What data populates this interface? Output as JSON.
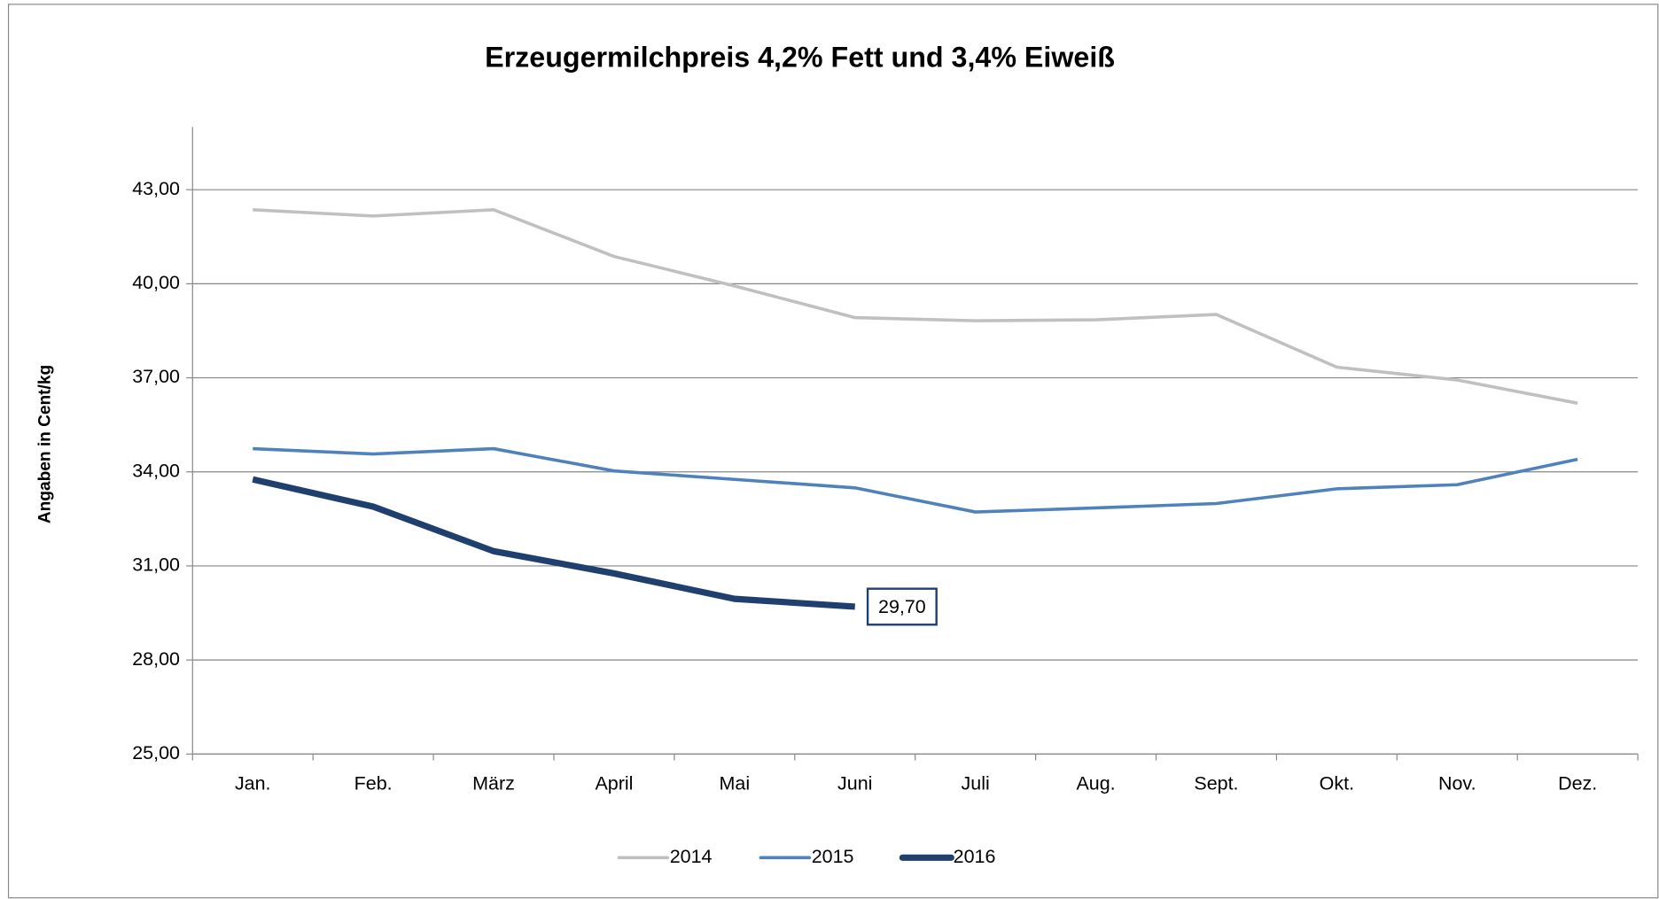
{
  "chart_data": {
    "type": "line",
    "title": "Erzeugermilchpreis 4,2% Fett und 3,4% Eiweiß",
    "y_label": "Angaben in Cent/kg",
    "categories": [
      "Jan.",
      "Feb.",
      "März",
      "April",
      "Mai",
      "Juni",
      "Juli",
      "Aug.",
      "Sept.",
      "Okt.",
      "Nov.",
      "Dez."
    ],
    "series": [
      {
        "name": "2014",
        "color": "#c0c0c0",
        "values": [
          42.36,
          42.16,
          42.36,
          40.87,
          39.93,
          38.92,
          38.82,
          38.85,
          39.02,
          37.34,
          36.93,
          36.19
        ]
      },
      {
        "name": "2015",
        "color": "#4f81bd",
        "values": [
          34.74,
          34.57,
          34.74,
          34.03,
          33.76,
          33.49,
          32.72,
          32.85,
          32.99,
          33.46,
          33.59,
          34.4
        ]
      },
      {
        "name": "2016",
        "color": "#1f3f6e",
        "values": [
          33.76,
          32.89,
          31.47,
          30.76,
          29.95,
          29.7,
          null,
          null,
          null,
          null,
          null,
          null
        ],
        "value_labels": [
          null,
          null,
          null,
          null,
          null,
          "29,70",
          null,
          null,
          null,
          null,
          null,
          null
        ]
      }
    ],
    "ylim": [
      25,
      45
    ],
    "yticks": [
      {
        "value": 25,
        "label": "25,00"
      },
      {
        "value": 28,
        "label": "28,00"
      },
      {
        "value": 31,
        "label": "31,00"
      },
      {
        "value": 34,
        "label": "34,00"
      },
      {
        "value": 37,
        "label": "37,00"
      },
      {
        "value": 40,
        "label": "40,00"
      },
      {
        "value": 43,
        "label": "43,00"
      }
    ],
    "grid": true,
    "legend": "bottom"
  }
}
